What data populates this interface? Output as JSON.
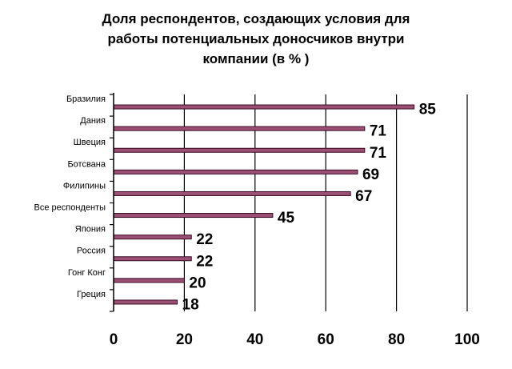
{
  "chart_data": {
    "type": "bar",
    "orientation": "horizontal",
    "title_lines": [
      "Доля респондентов, создающих условия для",
      "работы потенциальных доносчиков внутри",
      "компании (в % )"
    ],
    "categories": [
      "Бразилия",
      "Дания",
      "Швеция",
      "Ботсвана",
      "Филипины",
      "Все респонденты",
      "Япония",
      "Россия",
      "Гонг Конг",
      "Греция"
    ],
    "values": [
      85,
      71,
      71,
      69,
      67,
      45,
      22,
      22,
      20,
      18
    ],
    "xticks": [
      0,
      20,
      40,
      60,
      80,
      100
    ],
    "xlim": [
      0,
      100
    ],
    "grid": "vertical",
    "bar_color": "#9b4f73",
    "bar_outline_color": "#3a0a25"
  }
}
